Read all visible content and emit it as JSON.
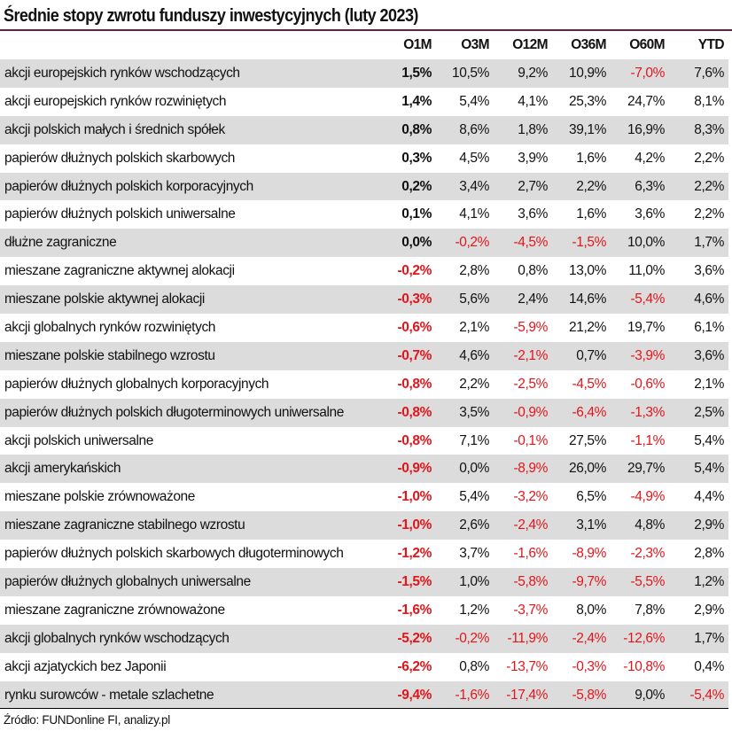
{
  "title": "Średnie stopy zwrotu funduszy inwestycyjnych (luty 2023)",
  "source": "Źródło: FUNDonline FI, analizy.pl",
  "colors": {
    "negative": "#e3151a",
    "row_stripe": "#dcdcdc",
    "title_rule": "#6b1f3e"
  },
  "chart_data": {
    "type": "table",
    "columns": [
      "",
      "O1M",
      "O3M",
      "O12M",
      "O36M",
      "O60M",
      "YTD"
    ],
    "rows": [
      [
        "akcji europejskich rynków wschodzących",
        "1,5%",
        "10,5%",
        "9,2%",
        "10,9%",
        "-7,0%",
        "7,6%"
      ],
      [
        "akcji europejskich rynków rozwiniętych",
        "1,4%",
        "5,4%",
        "4,1%",
        "25,3%",
        "24,7%",
        "8,1%"
      ],
      [
        "akcji polskich małych i średnich spółek",
        "0,8%",
        "8,6%",
        "1,8%",
        "39,1%",
        "16,9%",
        "8,3%"
      ],
      [
        "papierów dłużnych polskich skarbowych",
        "0,3%",
        "4,5%",
        "3,9%",
        "1,6%",
        "4,2%",
        "2,2%"
      ],
      [
        "papierów dłużnych polskich korporacyjnych",
        "0,2%",
        "3,4%",
        "2,7%",
        "2,2%",
        "6,3%",
        "2,2%"
      ],
      [
        "papierów dłużnych polskich uniwersalne",
        "0,1%",
        "4,1%",
        "3,6%",
        "1,6%",
        "3,6%",
        "2,2%"
      ],
      [
        "dłużne zagraniczne",
        "0,0%",
        "-0,2%",
        "-4,5%",
        "-1,5%",
        "10,0%",
        "1,7%"
      ],
      [
        "mieszane zagraniczne aktywnej alokacji",
        "-0,2%",
        "2,8%",
        "0,8%",
        "13,0%",
        "11,0%",
        "3,6%"
      ],
      [
        "mieszane polskie aktywnej alokacji",
        "-0,3%",
        "5,6%",
        "2,4%",
        "14,6%",
        "-5,4%",
        "4,6%"
      ],
      [
        "akcji globalnych rynków rozwiniętych",
        "-0,6%",
        "2,1%",
        "-5,9%",
        "21,2%",
        "19,7%",
        "6,1%"
      ],
      [
        "mieszane polskie stabilnego wzrostu",
        "-0,7%",
        "4,6%",
        "-2,1%",
        "0,7%",
        "-3,9%",
        "3,6%"
      ],
      [
        "papierów dłużnych globalnych korporacyjnych",
        "-0,8%",
        "2,2%",
        "-2,5%",
        "-4,5%",
        "-0,6%",
        "2,1%"
      ],
      [
        "papierów dłużnych polskich długoterminowych uniwersalne",
        "-0,8%",
        "3,5%",
        "-0,9%",
        "-6,4%",
        "-1,3%",
        "2,5%"
      ],
      [
        "akcji polskich uniwersalne",
        "-0,8%",
        "7,1%",
        "-0,1%",
        "27,5%",
        "-1,1%",
        "5,4%"
      ],
      [
        "akcji amerykańskich",
        "-0,9%",
        "0,0%",
        "-8,9%",
        "26,0%",
        "29,7%",
        "5,4%"
      ],
      [
        "mieszane polskie zrównoważone",
        "-1,0%",
        "5,4%",
        "-3,2%",
        "6,5%",
        "-4,9%",
        "4,4%"
      ],
      [
        "mieszane zagraniczne stabilnego wzrostu",
        "-1,0%",
        "2,6%",
        "-2,4%",
        "3,1%",
        "4,8%",
        "2,9%"
      ],
      [
        "papierów dłużnych polskich skarbowych długoterminowych",
        "-1,2%",
        "3,7%",
        "-1,6%",
        "-8,9%",
        "-2,3%",
        "2,8%"
      ],
      [
        "papierów dłużnych globalnych uniwersalne",
        "-1,5%",
        "1,0%",
        "-5,8%",
        "-9,7%",
        "-5,5%",
        "1,2%"
      ],
      [
        "mieszane zagraniczne zrównoważone",
        "-1,6%",
        "1,2%",
        "-3,7%",
        "8,0%",
        "7,8%",
        "2,9%"
      ],
      [
        "akcji globalnych rynków wschodzących",
        "-5,2%",
        "-0,2%",
        "-11,9%",
        "-2,4%",
        "-12,6%",
        "1,7%"
      ],
      [
        "akcji azjatyckich bez Japonii",
        "-6,2%",
        "0,8%",
        "-13,7%",
        "-0,3%",
        "-10,8%",
        "0,4%"
      ],
      [
        "rynku surowców - metale szlachetne",
        "-9,4%",
        "-1,6%",
        "-17,4%",
        "-5,8%",
        "9,0%",
        "-5,4%"
      ]
    ]
  }
}
